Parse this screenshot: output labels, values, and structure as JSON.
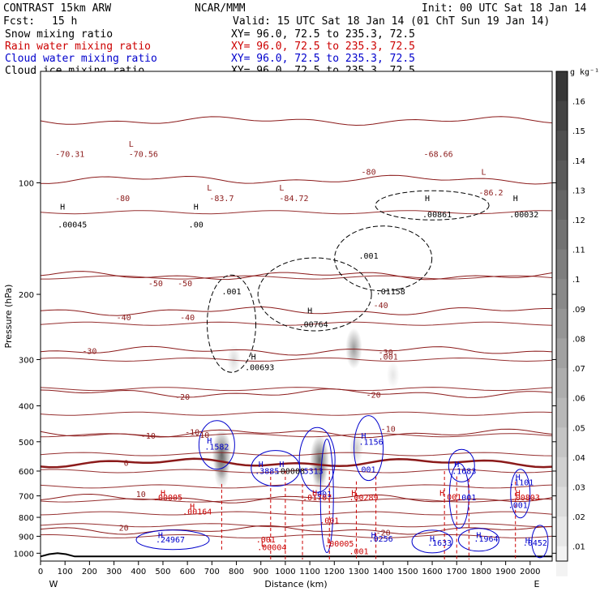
{
  "header": {
    "title": "CONTRAST 15km ARW",
    "center": "NCAR/MMM",
    "init": "Init: 00 UTC Sat 18 Jan 14",
    "fcst_label": "Fcst:",
    "fcst_value": "15 h",
    "valid": "Valid: 15 UTC Sat 18 Jan 14 (01 ChT Sun 19 Jan 14)"
  },
  "legend": [
    {
      "name": "Snow mixing ratio",
      "xy": "XY=  96.0, 72.5 to 235.3, 72.5",
      "color": "#000000"
    },
    {
      "name": "Rain water mixing ratio",
      "xy": "XY=  96.0, 72.5 to 235.3, 72.5",
      "color": "#cc0000"
    },
    {
      "name": "Cloud water mixing ratio",
      "xy": "XY=  96.0, 72.5 to 235.3, 72.5",
      "color": "#0000cc"
    },
    {
      "name": "Cloud ice mixing ratio",
      "xy": "XY=  96.0, 72.5 to 235.3, 72.5",
      "color": "#000000"
    }
  ],
  "colorbar": {
    "unit": "g kg⁻¹",
    "ticks": [
      ".16",
      ".15",
      ".14",
      ".13",
      ".12",
      ".11",
      ".1",
      ".09",
      ".08",
      ".07",
      ".06",
      ".05",
      ".04",
      ".03",
      ".02",
      ".01"
    ]
  },
  "chart_data": {
    "type": "heatmap",
    "xlabel": "Distance (km)",
    "ylabel": "Pressure (hPa)",
    "xlim": [
      0,
      2090
    ],
    "ylim": [
      1050,
      50
    ],
    "x_ticks": [
      0,
      100,
      200,
      300,
      400,
      500,
      600,
      700,
      800,
      900,
      1000,
      1100,
      1200,
      1300,
      1400,
      1500,
      1600,
      1700,
      1800,
      1900,
      2000
    ],
    "y_ticks": [
      100,
      200,
      300,
      400,
      500,
      600,
      700,
      800,
      900,
      1000
    ],
    "y_scale": "log",
    "x_end_labels": {
      "left": "W",
      "right": "E"
    },
    "temperature_contours": [
      {
        "value": "-70",
        "p": 68
      },
      {
        "value": "-80",
        "p": 98
      },
      {
        "value": "-50",
        "p": 178
      },
      {
        "value": "-40",
        "p": 222
      },
      {
        "value": "-30",
        "p": 284
      },
      {
        "value": "-20",
        "p": 370
      },
      {
        "value": "-10",
        "p": 475
      },
      {
        "value": "0",
        "p": 570
      },
      {
        "value": "10",
        "p": 712
      },
      {
        "value": "20",
        "p": 866
      }
    ],
    "shading_cells": [
      {
        "x": 740,
        "p": 540,
        "v": 0.12
      },
      {
        "x": 740,
        "p": 600,
        "v": 0.06
      },
      {
        "x": 1140,
        "p": 560,
        "v": 0.12
      },
      {
        "x": 1140,
        "p": 620,
        "v": 0.05
      },
      {
        "x": 1280,
        "p": 280,
        "v": 0.08
      },
      {
        "x": 790,
        "p": 300,
        "v": 0.03
      },
      {
        "x": 1290,
        "p": 520,
        "v": 0.04
      },
      {
        "x": 1440,
        "p": 330,
        "v": 0.02
      }
    ],
    "annotations": [
      {
        "text": "-70.31",
        "x": 120,
        "p": 85,
        "color": "#8b1a1a"
      },
      {
        "text": "L",
        "x": 370,
        "p": 80,
        "color": "#8b1a1a"
      },
      {
        "text": "-70.56",
        "x": 420,
        "p": 85,
        "color": "#8b1a1a"
      },
      {
        "text": "-80",
        "x": 335,
        "p": 112,
        "color": "#8b1a1a"
      },
      {
        "text": "L",
        "x": 690,
        "p": 105,
        "color": "#8b1a1a"
      },
      {
        "text": "-83.7",
        "x": 740,
        "p": 112,
        "color": "#8b1a1a"
      },
      {
        "text": "L",
        "x": 985,
        "p": 105,
        "color": "#8b1a1a"
      },
      {
        "text": "-84.72",
        "x": 1035,
        "p": 112,
        "color": "#8b1a1a"
      },
      {
        "text": "-80",
        "x": 1340,
        "p": 95,
        "color": "#8b1a1a"
      },
      {
        "text": "-68.66",
        "x": 1625,
        "p": 85,
        "color": "#8b1a1a"
      },
      {
        "text": "L",
        "x": 1810,
        "p": 95,
        "color": "#8b1a1a"
      },
      {
        "text": "-86.2",
        "x": 1840,
        "p": 108,
        "color": "#8b1a1a"
      },
      {
        "text": "-50",
        "x": 470,
        "p": 190,
        "color": "#8b1a1a"
      },
      {
        "text": "-50",
        "x": 590,
        "p": 190,
        "color": "#8b1a1a"
      },
      {
        "text": "-40",
        "x": 340,
        "p": 235,
        "color": "#8b1a1a"
      },
      {
        "text": "-40",
        "x": 600,
        "p": 235,
        "color": "#8b1a1a"
      },
      {
        "text": "-30",
        "x": 200,
        "p": 290,
        "color": "#8b1a1a"
      },
      {
        "text": "-20",
        "x": 580,
        "p": 385,
        "color": "#8b1a1a"
      },
      {
        "text": "-10",
        "x": 440,
        "p": 490,
        "color": "#8b1a1a"
      },
      {
        "text": "0",
        "x": 350,
        "p": 580,
        "color": "#8b1a1a"
      },
      {
        "text": "10",
        "x": 410,
        "p": 705,
        "color": "#8b1a1a"
      },
      {
        "text": "20",
        "x": 340,
        "p": 870,
        "color": "#8b1a1a"
      },
      {
        "text": "H",
        "x": 90,
        "p": 118,
        "color": "#000000"
      },
      {
        "text": ".00045",
        "x": 130,
        "p": 132,
        "color": "#000000"
      },
      {
        "text": "H",
        "x": 635,
        "p": 118,
        "color": "#000000"
      },
      {
        "text": ".00",
        "x": 635,
        "p": 132,
        "color": "#000000"
      },
      {
        "text": "H",
        "x": 1580,
        "p": 112,
        "color": "#000000"
      },
      {
        "text": ".00861",
        "x": 1620,
        "p": 124,
        "color": "#000000"
      },
      {
        "text": "H",
        "x": 1940,
        "p": 112,
        "color": "#000000"
      },
      {
        "text": ".00032",
        "x": 1975,
        "p": 124,
        "color": "#000000"
      },
      {
        "text": ".001",
        "x": 1340,
        "p": 160,
        "color": "#000000"
      },
      {
        "text": ".001",
        "x": 780,
        "p": 200,
        "color": "#000000"
      },
      {
        "text": "H",
        "x": 1100,
        "p": 225,
        "color": "#000000"
      },
      {
        "text": ".00764",
        "x": 1115,
        "p": 245,
        "color": "#000000"
      },
      {
        "text": "H",
        "x": 870,
        "p": 300,
        "color": "#000000"
      },
      {
        "text": ".00693",
        "x": 895,
        "p": 320,
        "color": "#000000"
      },
      {
        "text": ".01158",
        "x": 1430,
        "p": 200,
        "color": "#000000"
      },
      {
        "text": ".001",
        "x": 1420,
        "p": 300,
        "color": "#8b1a1a"
      },
      {
        "text": "-40",
        "x": 1390,
        "p": 218,
        "color": "#8b1a1a"
      },
      {
        "text": "-30",
        "x": 1410,
        "p": 292,
        "color": "#8b1a1a"
      },
      {
        "text": "-20",
        "x": 1360,
        "p": 380,
        "color": "#8b1a1a"
      },
      {
        "text": "-10",
        "x": 1420,
        "p": 470,
        "color": "#8b1a1a"
      },
      {
        "text": "-10",
        "x": 660,
        "p": 488,
        "color": "#8b1a1a"
      },
      {
        "text": "H",
        "x": 690,
        "p": 505,
        "color": "#0000cc"
      },
      {
        "text": ".1582",
        "x": 720,
        "p": 525,
        "color": "#0000cc"
      },
      {
        "text": "H",
        "x": 1320,
        "p": 490,
        "color": "#0000cc"
      },
      {
        "text": ".1156",
        "x": 1350,
        "p": 510,
        "color": "#0000cc"
      },
      {
        "text": "H",
        "x": 900,
        "p": 585,
        "color": "#0000cc"
      },
      {
        "text": ".3885",
        "x": 925,
        "p": 610,
        "color": "#0000cc"
      },
      {
        "text": "H",
        "x": 985,
        "p": 585,
        "color": "#0000cc"
      },
      {
        "text": ".00008",
        "x": 1020,
        "p": 610,
        "color": "#000000"
      },
      {
        "text": ".5313",
        "x": 1105,
        "p": 610,
        "color": "#0000cc"
      },
      {
        "text": ".001",
        "x": 1330,
        "p": 605,
        "color": "#0000cc"
      },
      {
        "text": "H",
        "x": 1700,
        "p": 585,
        "color": "#0000cc"
      },
      {
        "text": ".1683",
        "x": 1730,
        "p": 610,
        "color": "#0000cc"
      },
      {
        "text": ".001",
        "x": 1150,
        "p": 705,
        "color": "#0000cc"
      },
      {
        "text": "H",
        "x": 500,
        "p": 700,
        "color": "#cc0000"
      },
      {
        "text": ".00005",
        "x": 520,
        "p": 720,
        "color": "#cc0000"
      },
      {
        "text": "H",
        "x": 1120,
        "p": 700,
        "color": "#cc0000"
      },
      {
        "text": ".01707",
        "x": 1130,
        "p": 720,
        "color": "#cc0000"
      },
      {
        "text": "H",
        "x": 1280,
        "p": 700,
        "color": "#cc0000"
      },
      {
        "text": ".00289",
        "x": 1320,
        "p": 720,
        "color": "#cc0000"
      },
      {
        "text": "H",
        "x": 620,
        "p": 760,
        "color": "#cc0000"
      },
      {
        "text": ".00164",
        "x": 640,
        "p": 785,
        "color": "#cc0000"
      },
      {
        "text": ".001",
        "x": 1180,
        "p": 830,
        "color": "#cc0000"
      },
      {
        "text": ".001",
        "x": 1680,
        "p": 718,
        "color": "#cc0000"
      },
      {
        "text": ".001",
        "x": 1740,
        "p": 720,
        "color": "#0000cc"
      },
      {
        "text": "H",
        "x": 1640,
        "p": 700,
        "color": "#cc0000"
      },
      {
        "text": "H",
        "x": 1950,
        "p": 700,
        "color": "#cc0000"
      },
      {
        "text": ".00803",
        "x": 1980,
        "p": 720,
        "color": "#cc0000"
      },
      {
        "text": "H",
        "x": 1950,
        "p": 635,
        "color": "#0000cc"
      },
      {
        "text": ".1101",
        "x": 1965,
        "p": 655,
        "color": "#0000cc"
      },
      {
        "text": ".001",
        "x": 1950,
        "p": 755,
        "color": "#0000cc"
      },
      {
        "text": "H",
        "x": 490,
        "p": 910,
        "color": "#0000cc"
      },
      {
        "text": ".24967",
        "x": 530,
        "p": 935,
        "color": "#0000cc"
      },
      {
        "text": "H",
        "x": 1360,
        "p": 910,
        "color": "#0000cc"
      },
      {
        "text": ".0256",
        "x": 1390,
        "p": 930,
        "color": "#0000cc"
      },
      {
        "text": "H",
        "x": 1600,
        "p": 930,
        "color": "#0000cc"
      },
      {
        "text": ".1633",
        "x": 1630,
        "p": 955,
        "color": "#0000cc"
      },
      {
        "text": "H",
        "x": 1790,
        "p": 910,
        "color": "#0000cc"
      },
      {
        "text": ".1964",
        "x": 1820,
        "p": 930,
        "color": "#0000cc"
      },
      {
        "text": "H",
        "x": 1990,
        "p": 940,
        "color": "#0000cc"
      },
      {
        "text": ".0452",
        "x": 2020,
        "p": 955,
        "color": "#0000cc"
      },
      {
        "text": ".001",
        "x": 920,
        "p": 935,
        "color": "#cc0000"
      },
      {
        "text": "L",
        "x": 910,
        "p": 960,
        "color": "#cc0000"
      },
      {
        "text": ".00004",
        "x": 945,
        "p": 980,
        "color": "#cc0000"
      },
      {
        "text": "L",
        "x": 1180,
        "p": 940,
        "color": "#cc0000"
      },
      {
        "text": ".00005",
        "x": 1220,
        "p": 960,
        "color": "#cc0000"
      },
      {
        "text": ".001",
        "x": 1300,
        "p": 1005,
        "color": "#cc0000"
      },
      {
        "text": "-20",
        "x": 1400,
        "p": 895,
        "color": "#8b1a1a"
      },
      {
        "text": "-10",
        "x": 620,
        "p": 480,
        "color": "#8b1a1a"
      }
    ]
  }
}
